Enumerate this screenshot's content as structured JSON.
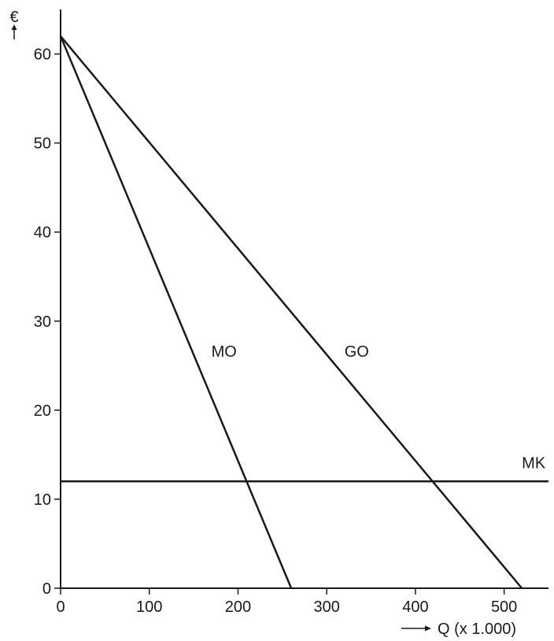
{
  "chart_data": {
    "type": "line",
    "ylabel": "€",
    "xlabel": "Q (x 1.000)",
    "xlim": [
      0,
      550
    ],
    "ylim": [
      0,
      65
    ],
    "x_ticks": [
      0,
      100,
      200,
      300,
      400,
      500
    ],
    "y_ticks": [
      0,
      10,
      20,
      30,
      40,
      50,
      60
    ],
    "grid": false,
    "legend": "none",
    "series": [
      {
        "name": "GO",
        "x": [
          0,
          520
        ],
        "y": [
          62,
          0
        ],
        "label_at": [
          320,
          26
        ]
      },
      {
        "name": "MO",
        "x": [
          0,
          260
        ],
        "y": [
          62,
          0
        ],
        "label_at": [
          170,
          26
        ]
      },
      {
        "name": "MK",
        "x": [
          0,
          550
        ],
        "y": [
          12,
          12
        ],
        "label_at": [
          520,
          13.5
        ]
      }
    ]
  }
}
